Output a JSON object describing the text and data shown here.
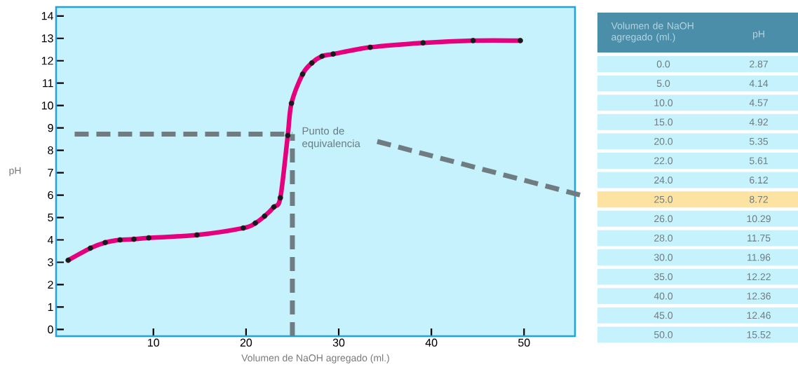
{
  "chart_data": [
    {
      "type": "line",
      "xlabel": "Volumen de NaOH agregado (ml.)",
      "ylabel": "pH",
      "x": [
        0.8,
        3.2,
        4.8,
        6.4,
        7.9,
        9.5,
        14.7,
        19.7,
        21.0,
        22.0,
        23.0,
        23.7,
        24.5,
        24.9,
        26.1,
        27.1,
        28.2,
        29.4,
        33.4,
        39.1,
        44.5,
        49.6
      ],
      "series": [
        {
          "type": "line",
          "color": "#e5007d",
          "marker": "none",
          "values": [
            3.09,
            3.63,
            3.88,
            4.0,
            4.03,
            4.09,
            4.22,
            4.53,
            4.75,
            5.06,
            5.47,
            5.88,
            8.66,
            10.1,
            11.4,
            11.9,
            12.2,
            12.3,
            12.6,
            12.8,
            12.9,
            12.9
          ]
        },
        {
          "type": "scatter",
          "color": "#1a1a1a",
          "marker": "circle",
          "values": [
            3.09,
            3.63,
            3.88,
            4.0,
            4.03,
            4.09,
            4.22,
            4.53,
            4.75,
            5.06,
            5.47,
            5.88,
            8.66,
            10.1,
            11.4,
            11.9,
            12.2,
            12.3,
            12.6,
            12.8,
            12.9,
            12.9
          ]
        }
      ],
      "xlim": [
        -0.5,
        55.5
      ],
      "ylim": [
        -0.3,
        14.4
      ],
      "xticks": [
        10,
        20,
        30,
        40,
        50
      ],
      "yticks": [
        0,
        1,
        2,
        3,
        4,
        5,
        6,
        7,
        8,
        9,
        10,
        11,
        12,
        13,
        14
      ],
      "ref_lines": [
        {
          "axis": "y",
          "value": 8.72,
          "color": "#6f7d82",
          "line_style": "dashed"
        },
        {
          "axis": "x",
          "value": 25,
          "color": "#6f7d82",
          "line_style": "dashed"
        }
      ],
      "annotations": [
        {
          "text": "Punto de equivalencia",
          "x": 25,
          "y": 8.72
        }
      ],
      "grid": false
    },
    {
      "type": "other",
      "xlabel": "Volumen de NaOH agregado (ml.)",
      "ylabel": "pH",
      "categories": [
        "0.0",
        "5.0",
        "10.0",
        "15.0",
        "20.0",
        "22.0",
        "24.0",
        "25.0",
        "26.0",
        "28.0",
        "30.0",
        "35.0",
        "40.0",
        "45.0",
        "50.0"
      ],
      "values": [
        2.87,
        4.14,
        4.57,
        4.92,
        5.35,
        5.61,
        6.12,
        8.72,
        10.29,
        11.75,
        11.96,
        12.22,
        12.36,
        12.46,
        15.52
      ],
      "colors": [
        "#c5f2fc",
        "#c5f2fc",
        "#c5f2fc",
        "#c5f2fc",
        "#c5f2fc",
        "#c5f2fc",
        "#c5f2fc",
        "#fde3a1",
        "#c5f2fc",
        "#c5f2fc",
        "#c5f2fc",
        "#c5f2fc",
        "#c5f2fc",
        "#c5f2fc",
        "#c5f2fc"
      ],
      "data_labels": true
    }
  ]
}
